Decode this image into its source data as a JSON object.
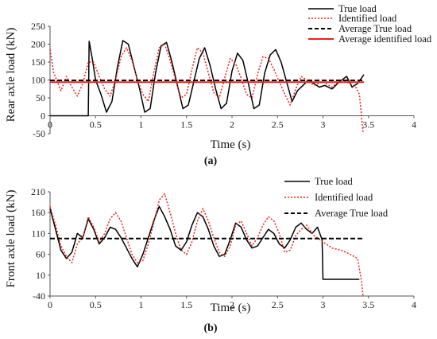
{
  "chart_data": [
    {
      "type": "line",
      "panel_label": "(a)",
      "xlabel": "Time (s)",
      "ylabel": "Rear axle load (kN)",
      "xlim": [
        0,
        4
      ],
      "ylim": [
        -50,
        250
      ],
      "xticks": [
        0,
        0.5,
        1,
        1.5,
        2,
        2.5,
        3,
        3.5,
        4
      ],
      "yticks": [
        -50,
        0,
        50,
        100,
        150,
        200,
        250
      ],
      "xtick_labels": [
        "0",
        "0.5",
        "1",
        "1.5",
        "2",
        "2.5",
        "3",
        "3.5",
        "4"
      ],
      "ytick_labels": [
        "-50",
        "0",
        "50",
        "100",
        "150",
        "200",
        "250"
      ],
      "legend_position": "top-right",
      "series": [
        {
          "name": "True load",
          "color": "#000000",
          "style": "solid",
          "x": [
            0,
            0.42,
            0.43,
            0.46,
            0.5,
            0.56,
            0.62,
            0.68,
            0.74,
            0.8,
            0.86,
            0.92,
            0.98,
            1.04,
            1.1,
            1.16,
            1.22,
            1.28,
            1.34,
            1.4,
            1.46,
            1.52,
            1.58,
            1.64,
            1.7,
            1.76,
            1.82,
            1.88,
            1.94,
            2.0,
            2.06,
            2.12,
            2.18,
            2.24,
            2.3,
            2.36,
            2.42,
            2.48,
            2.54,
            2.6,
            2.66,
            2.72,
            2.78,
            2.84,
            2.9,
            2.96,
            3.02,
            3.1,
            3.18,
            3.26,
            3.32,
            3.38,
            3.45
          ],
          "y": [
            0,
            0,
            208,
            165,
            100,
            60,
            10,
            40,
            135,
            210,
            200,
            140,
            80,
            10,
            20,
            120,
            195,
            205,
            150,
            85,
            20,
            30,
            95,
            160,
            190,
            140,
            75,
            20,
            35,
            125,
            175,
            155,
            90,
            20,
            30,
            120,
            170,
            185,
            150,
            95,
            40,
            70,
            85,
            100,
            90,
            80,
            85,
            75,
            95,
            110,
            80,
            90,
            115
          ]
        },
        {
          "name": "Identified load",
          "color": "#e8231b",
          "style": "dotted",
          "x": [
            0,
            0.04,
            0.08,
            0.12,
            0.18,
            0.24,
            0.3,
            0.36,
            0.42,
            0.48,
            0.54,
            0.6,
            0.66,
            0.72,
            0.78,
            0.84,
            0.9,
            0.96,
            1.02,
            1.08,
            1.14,
            1.2,
            1.26,
            1.32,
            1.38,
            1.44,
            1.5,
            1.56,
            1.62,
            1.68,
            1.74,
            1.8,
            1.86,
            1.92,
            1.98,
            2.04,
            2.1,
            2.16,
            2.22,
            2.28,
            2.34,
            2.4,
            2.46,
            2.52,
            2.58,
            2.64,
            2.7,
            2.76,
            2.82,
            2.9,
            3.0,
            3.1,
            3.2,
            3.3,
            3.36,
            3.4,
            3.44
          ],
          "y": [
            185,
            120,
            95,
            70,
            110,
            80,
            55,
            90,
            150,
            150,
            110,
            75,
            55,
            100,
            165,
            190,
            155,
            100,
            60,
            40,
            120,
            190,
            200,
            155,
            100,
            50,
            60,
            130,
            190,
            175,
            120,
            65,
            50,
            105,
            160,
            145,
            105,
            60,
            50,
            115,
            165,
            160,
            130,
            95,
            60,
            30,
            75,
            110,
            100,
            85,
            95,
            80,
            100,
            90,
            80,
            60,
            -45
          ]
        },
        {
          "name": "Average True load",
          "color": "#000000",
          "style": "dashed",
          "x": [
            0,
            3.45
          ],
          "y": [
            99,
            99
          ]
        },
        {
          "name": "Average identified load",
          "color": "#e8231b",
          "style": "solid",
          "x": [
            0,
            3.45
          ],
          "y": [
            94,
            94
          ]
        }
      ]
    },
    {
      "type": "line",
      "panel_label": "(b)",
      "xlabel": "Time (s)",
      "ylabel": "Front axle load (kN)",
      "xlim": [
        0,
        4
      ],
      "ylim": [
        -40,
        210
      ],
      "xticks": [
        0,
        0.5,
        1,
        1.5,
        2,
        2.5,
        3,
        3.5,
        4
      ],
      "yticks": [
        -40,
        10,
        60,
        110,
        160,
        210
      ],
      "xtick_labels": [
        "0",
        "0.5",
        "1",
        "1.5",
        "2",
        "2.5",
        "3",
        "3.5",
        "4"
      ],
      "ytick_labels": [
        "-40",
        "10",
        "60",
        "110",
        "160",
        "210"
      ],
      "legend_position": "top-right",
      "series": [
        {
          "name": "True load",
          "color": "#000000",
          "style": "solid",
          "x": [
            0,
            0.06,
            0.12,
            0.18,
            0.24,
            0.3,
            0.36,
            0.42,
            0.48,
            0.54,
            0.6,
            0.66,
            0.72,
            0.78,
            0.84,
            0.9,
            0.96,
            1.02,
            1.08,
            1.14,
            1.2,
            1.26,
            1.32,
            1.38,
            1.44,
            1.5,
            1.56,
            1.62,
            1.68,
            1.74,
            1.8,
            1.86,
            1.92,
            1.98,
            2.04,
            2.1,
            2.16,
            2.22,
            2.28,
            2.34,
            2.4,
            2.46,
            2.52,
            2.58,
            2.64,
            2.7,
            2.76,
            2.82,
            2.88,
            2.94,
            2.99,
            3.0,
            3.4
          ],
          "y": [
            170,
            120,
            70,
            50,
            65,
            110,
            100,
            145,
            120,
            85,
            100,
            125,
            120,
            100,
            75,
            50,
            30,
            60,
            100,
            140,
            175,
            150,
            120,
            80,
            70,
            90,
            130,
            160,
            150,
            120,
            80,
            55,
            60,
            95,
            135,
            125,
            95,
            75,
            80,
            100,
            120,
            110,
            85,
            75,
            95,
            125,
            135,
            120,
            110,
            125,
            95,
            0,
            0
          ]
        },
        {
          "name": "Identified load",
          "color": "#e8231b",
          "style": "dotted",
          "x": [
            0,
            0.06,
            0.12,
            0.18,
            0.24,
            0.3,
            0.36,
            0.42,
            0.48,
            0.54,
            0.6,
            0.66,
            0.72,
            0.78,
            0.84,
            0.9,
            0.96,
            1.02,
            1.08,
            1.14,
            1.2,
            1.26,
            1.32,
            1.38,
            1.44,
            1.5,
            1.56,
            1.62,
            1.68,
            1.74,
            1.8,
            1.86,
            1.92,
            1.98,
            2.04,
            2.1,
            2.16,
            2.22,
            2.28,
            2.34,
            2.4,
            2.46,
            2.52,
            2.58,
            2.64,
            2.7,
            2.76,
            2.82,
            2.9,
            3.0,
            3.1,
            3.2,
            3.3,
            3.38,
            3.42,
            3.44
          ],
          "y": [
            175,
            130,
            80,
            55,
            40,
            85,
            100,
            150,
            125,
            90,
            110,
            145,
            160,
            140,
            100,
            60,
            40,
            45,
            85,
            135,
            190,
            205,
            160,
            110,
            70,
            60,
            90,
            140,
            170,
            140,
            100,
            65,
            55,
            80,
            130,
            140,
            110,
            80,
            100,
            130,
            150,
            140,
            110,
            65,
            70,
            105,
            120,
            130,
            105,
            90,
            75,
            70,
            60,
            50,
            0,
            -40
          ]
        },
        {
          "name": "Average True load",
          "color": "#000000",
          "style": "dashed",
          "x": [
            0,
            3.45
          ],
          "y": [
            98,
            98
          ]
        }
      ]
    }
  ]
}
